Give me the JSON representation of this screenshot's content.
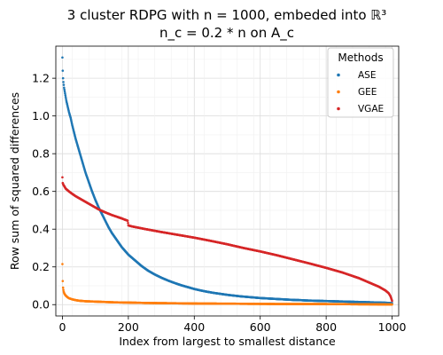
{
  "chart_data": {
    "type": "scatter",
    "title_line1": "3 cluster RDPG with n = 1000, embeded into ℝ³",
    "title_line2": "n_c = 0.2 * n on A_c",
    "xlabel": "Index from largest to smallest distance",
    "ylabel": "Row sum of squared differences",
    "xlim": [
      -20,
      1020
    ],
    "ylim": [
      -0.06,
      1.37
    ],
    "x_ticks": [
      0,
      200,
      400,
      600,
      800,
      1000
    ],
    "x_tick_labels": [
      "0",
      "200",
      "400",
      "600",
      "800",
      "1000"
    ],
    "y_ticks": [
      0.0,
      0.2,
      0.4,
      0.6,
      0.8,
      1.0,
      1.2
    ],
    "y_tick_labels": [
      "0.0",
      "0.2",
      "0.4",
      "0.6",
      "0.8",
      "1.0",
      "1.2"
    ],
    "grid": true,
    "legend": {
      "title": "Methods",
      "placement": "top-right"
    },
    "series": [
      {
        "name": "ASE",
        "color": "#1f77b4",
        "points": [
          [
            0,
            1.31
          ],
          [
            1,
            1.24
          ],
          [
            2,
            1.2
          ],
          [
            3,
            1.18
          ],
          [
            5,
            1.15
          ],
          [
            8,
            1.12
          ],
          [
            12,
            1.08
          ],
          [
            16,
            1.05
          ],
          [
            20,
            1.02
          ],
          [
            25,
            0.99
          ],
          [
            30,
            0.95
          ],
          [
            40,
            0.88
          ],
          [
            50,
            0.82
          ],
          [
            60,
            0.76
          ],
          [
            70,
            0.7
          ],
          [
            80,
            0.65
          ],
          [
            90,
            0.6
          ],
          [
            100,
            0.555
          ],
          [
            110,
            0.515
          ],
          [
            120,
            0.48
          ],
          [
            130,
            0.445
          ],
          [
            140,
            0.41
          ],
          [
            150,
            0.38
          ],
          [
            160,
            0.355
          ],
          [
            170,
            0.33
          ],
          [
            180,
            0.305
          ],
          [
            190,
            0.285
          ],
          [
            200,
            0.265
          ],
          [
            220,
            0.235
          ],
          [
            240,
            0.205
          ],
          [
            260,
            0.18
          ],
          [
            280,
            0.16
          ],
          [
            300,
            0.143
          ],
          [
            320,
            0.128
          ],
          [
            340,
            0.115
          ],
          [
            360,
            0.103
          ],
          [
            380,
            0.093
          ],
          [
            400,
            0.083
          ],
          [
            420,
            0.075
          ],
          [
            440,
            0.068
          ],
          [
            460,
            0.062
          ],
          [
            480,
            0.057
          ],
          [
            500,
            0.052
          ],
          [
            520,
            0.048
          ],
          [
            540,
            0.044
          ],
          [
            560,
            0.041
          ],
          [
            580,
            0.038
          ],
          [
            600,
            0.035
          ],
          [
            620,
            0.033
          ],
          [
            640,
            0.031
          ],
          [
            660,
            0.029
          ],
          [
            680,
            0.027
          ],
          [
            700,
            0.025
          ],
          [
            720,
            0.024
          ],
          [
            740,
            0.022
          ],
          [
            760,
            0.021
          ],
          [
            780,
            0.02
          ],
          [
            800,
            0.019
          ],
          [
            820,
            0.018
          ],
          [
            840,
            0.017
          ],
          [
            860,
            0.016
          ],
          [
            880,
            0.015
          ],
          [
            900,
            0.014
          ],
          [
            920,
            0.013
          ],
          [
            940,
            0.012
          ],
          [
            960,
            0.011
          ],
          [
            980,
            0.01
          ],
          [
            1000,
            0.008
          ]
        ]
      },
      {
        "name": "GEE",
        "color": "#ff7f0e",
        "points": [
          [
            0,
            0.215
          ],
          [
            1,
            0.125
          ],
          [
            2,
            0.09
          ],
          [
            3,
            0.078
          ],
          [
            4,
            0.068
          ],
          [
            6,
            0.058
          ],
          [
            10,
            0.048
          ],
          [
            15,
            0.04
          ],
          [
            20,
            0.034
          ],
          [
            30,
            0.028
          ],
          [
            40,
            0.024
          ],
          [
            50,
            0.021
          ],
          [
            70,
            0.018
          ],
          [
            100,
            0.016
          ],
          [
            130,
            0.014
          ],
          [
            160,
            0.012
          ],
          [
            200,
            0.011
          ],
          [
            250,
            0.009
          ],
          [
            300,
            0.008
          ],
          [
            400,
            0.006
          ],
          [
            500,
            0.005
          ],
          [
            600,
            0.004
          ],
          [
            700,
            0.003
          ],
          [
            800,
            0.003
          ],
          [
            900,
            0.002
          ],
          [
            1000,
            0.001
          ]
        ]
      },
      {
        "name": "VGAE",
        "color": "#d62728",
        "points": [
          [
            0,
            0.675
          ],
          [
            1,
            0.645
          ],
          [
            2,
            0.64
          ],
          [
            3,
            0.635
          ],
          [
            5,
            0.63
          ],
          [
            10,
            0.615
          ],
          [
            20,
            0.6
          ],
          [
            30,
            0.587
          ],
          [
            40,
            0.575
          ],
          [
            50,
            0.565
          ],
          [
            60,
            0.555
          ],
          [
            70,
            0.545
          ],
          [
            80,
            0.535
          ],
          [
            90,
            0.525
          ],
          [
            100,
            0.515
          ],
          [
            110,
            0.505
          ],
          [
            120,
            0.497
          ],
          [
            130,
            0.489
          ],
          [
            140,
            0.482
          ],
          [
            150,
            0.475
          ],
          [
            160,
            0.469
          ],
          [
            170,
            0.463
          ],
          [
            180,
            0.457
          ],
          [
            190,
            0.45
          ],
          [
            198,
            0.445
          ],
          [
            200,
            0.42
          ],
          [
            210,
            0.415
          ],
          [
            230,
            0.408
          ],
          [
            250,
            0.401
          ],
          [
            300,
            0.385
          ],
          [
            350,
            0.37
          ],
          [
            400,
            0.355
          ],
          [
            450,
            0.338
          ],
          [
            500,
            0.32
          ],
          [
            550,
            0.3
          ],
          [
            600,
            0.282
          ],
          [
            650,
            0.262
          ],
          [
            700,
            0.24
          ],
          [
            750,
            0.218
          ],
          [
            800,
            0.195
          ],
          [
            850,
            0.17
          ],
          [
            900,
            0.14
          ],
          [
            940,
            0.11
          ],
          [
            960,
            0.095
          ],
          [
            980,
            0.075
          ],
          [
            990,
            0.06
          ],
          [
            995,
            0.045
          ],
          [
            1000,
            0.02
          ]
        ]
      }
    ]
  }
}
